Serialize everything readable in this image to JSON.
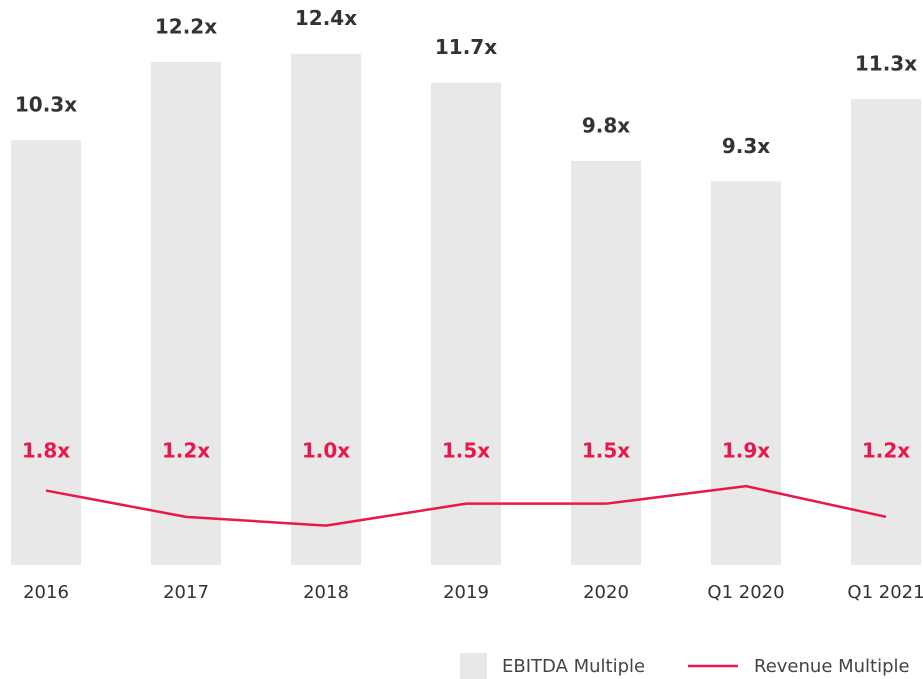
{
  "chart_data": {
    "type": "bar_line",
    "categories": [
      "2016",
      "2017",
      "2018",
      "2019",
      "2020",
      "Q1 2020",
      "Q1 2021"
    ],
    "ylim": [
      0,
      13.7
    ],
    "y2lim": [
      0.1,
      13.0
    ],
    "series": [
      {
        "name": "EBITDA Multiple",
        "type": "bar",
        "color": "#e8e8e8",
        "label_color": "#333333",
        "values": [
          10.3,
          12.2,
          12.4,
          11.7,
          9.8,
          9.3,
          11.3
        ],
        "value_labels": [
          "10.3x",
          "12.2x",
          "12.4x",
          "11.7x",
          "9.8x",
          "9.3x",
          "11.3x"
        ]
      },
      {
        "name": "Revenue Multiple",
        "type": "line",
        "axis": "y2",
        "color": "#e8194a",
        "label_color": "#e8194a",
        "values": [
          1.8,
          1.2,
          1.0,
          1.5,
          1.5,
          1.9,
          1.2
        ],
        "value_labels": [
          "1.8x",
          "1.2x",
          "1.0x",
          "1.5x",
          "1.5x",
          "1.9x",
          "1.2x"
        ]
      }
    ]
  }
}
